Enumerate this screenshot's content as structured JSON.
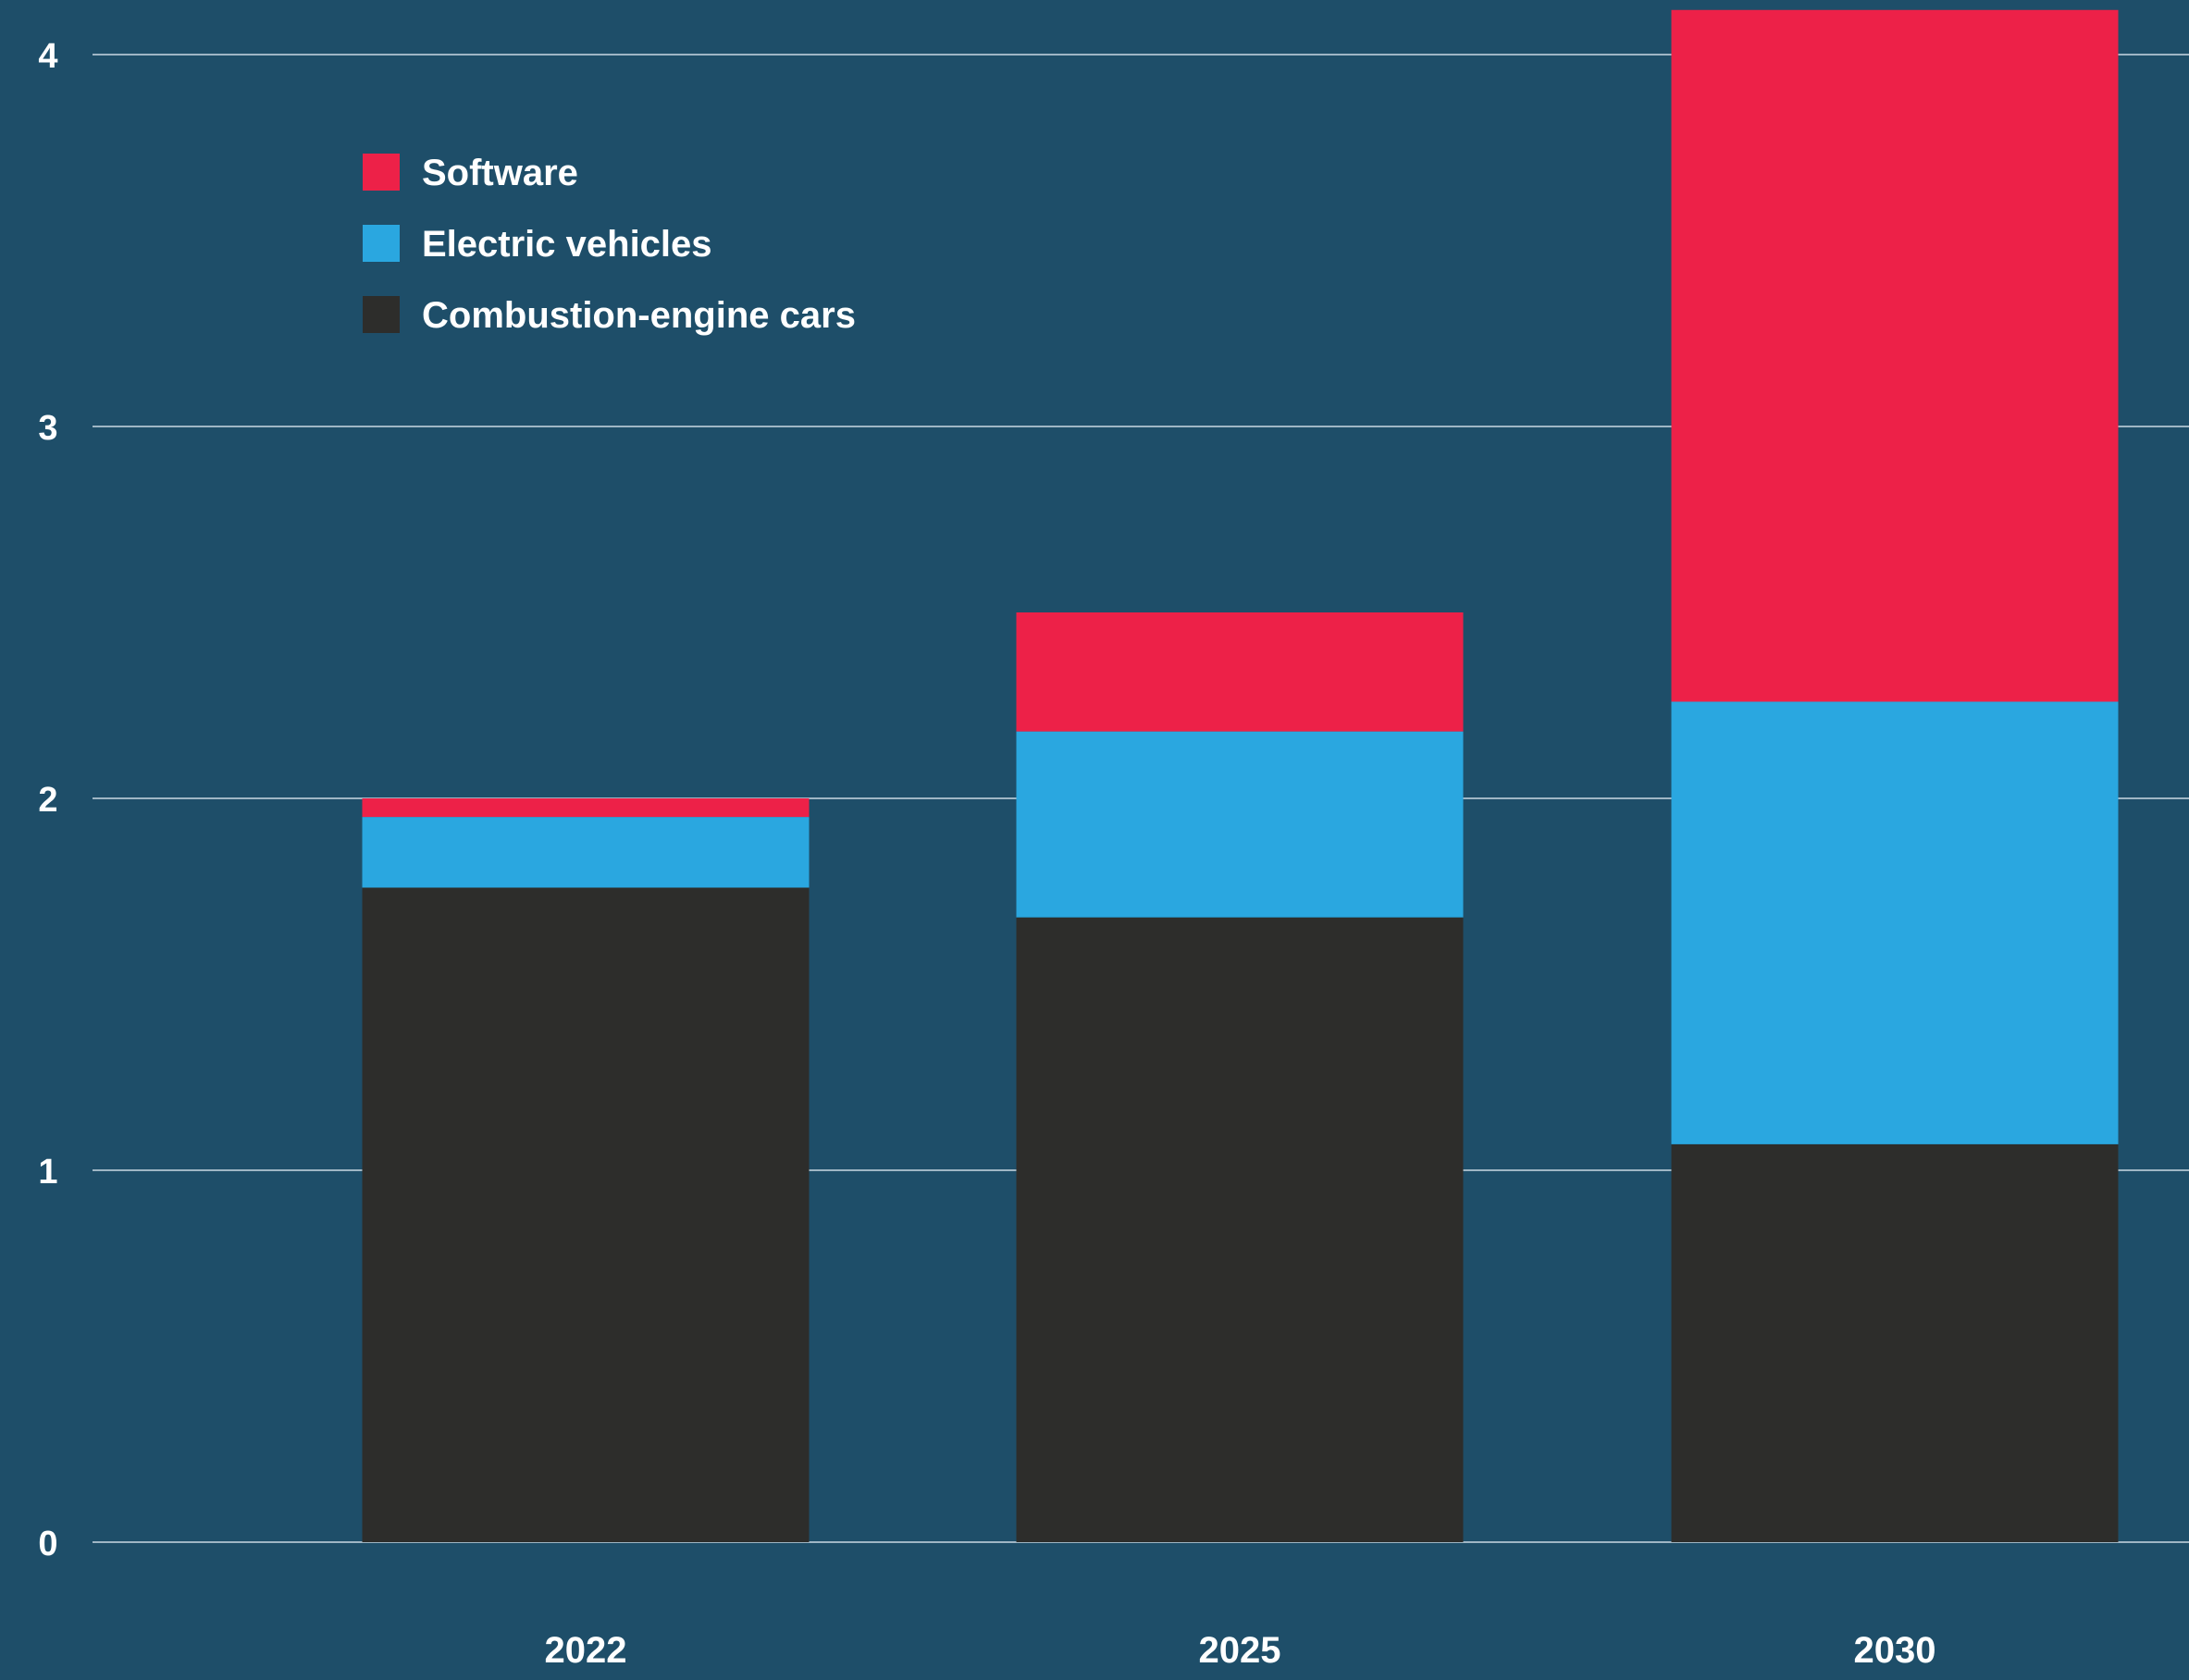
{
  "chart_data": {
    "type": "bar",
    "stacked": true,
    "categories": [
      "2022",
      "2025",
      "2030"
    ],
    "series": [
      {
        "name": "Combustion-engine cars",
        "color": "#2d2d2b",
        "values": [
          1.76,
          1.68,
          1.07
        ]
      },
      {
        "name": "Electric vehicles",
        "color": "#2aa7e0",
        "values": [
          0.19,
          0.5,
          1.19
        ]
      },
      {
        "name": "Software",
        "color": "#ed2148",
        "values": [
          0.05,
          0.32,
          1.86
        ]
      }
    ],
    "legend_order": [
      "Software",
      "Electric vehicles",
      "Combustion-engine cars"
    ],
    "yticks": [
      0,
      1,
      2,
      3,
      4
    ],
    "ylim": [
      0,
      4.12
    ],
    "grid": true,
    "legend_position": "top-left",
    "background_color": "#1e4e69",
    "title": "",
    "xlabel": "",
    "ylabel": ""
  }
}
